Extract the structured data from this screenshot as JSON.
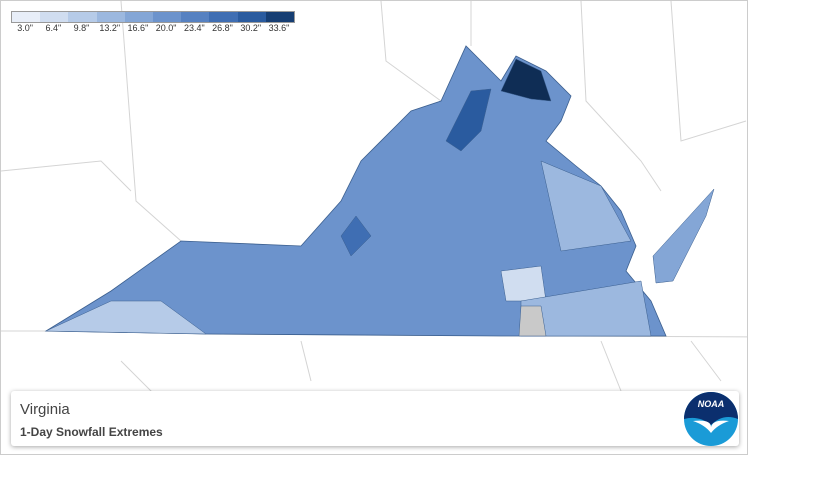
{
  "legend": {
    "items": [
      {
        "label": "3.0\"",
        "color": "#e8eef8"
      },
      {
        "label": "6.4\"",
        "color": "#d0ddf0"
      },
      {
        "label": "9.8\"",
        "color": "#b6cbe8"
      },
      {
        "label": "13.2\"",
        "color": "#9cb8df"
      },
      {
        "label": "16.6\"",
        "color": "#84a6d6"
      },
      {
        "label": "20.0\"",
        "color": "#6c93cc"
      },
      {
        "label": "23.4\"",
        "color": "#5681c1"
      },
      {
        "label": "26.8\"",
        "color": "#3f6eb3"
      },
      {
        "label": "30.2\"",
        "color": "#2a5b9f"
      },
      {
        "label": "33.6\"",
        "color": "#163e73"
      }
    ]
  },
  "card": {
    "title": "Virginia",
    "subtitle": "1-Day Snowfall Extremes"
  },
  "logo": {
    "text": "NOAA"
  }
}
